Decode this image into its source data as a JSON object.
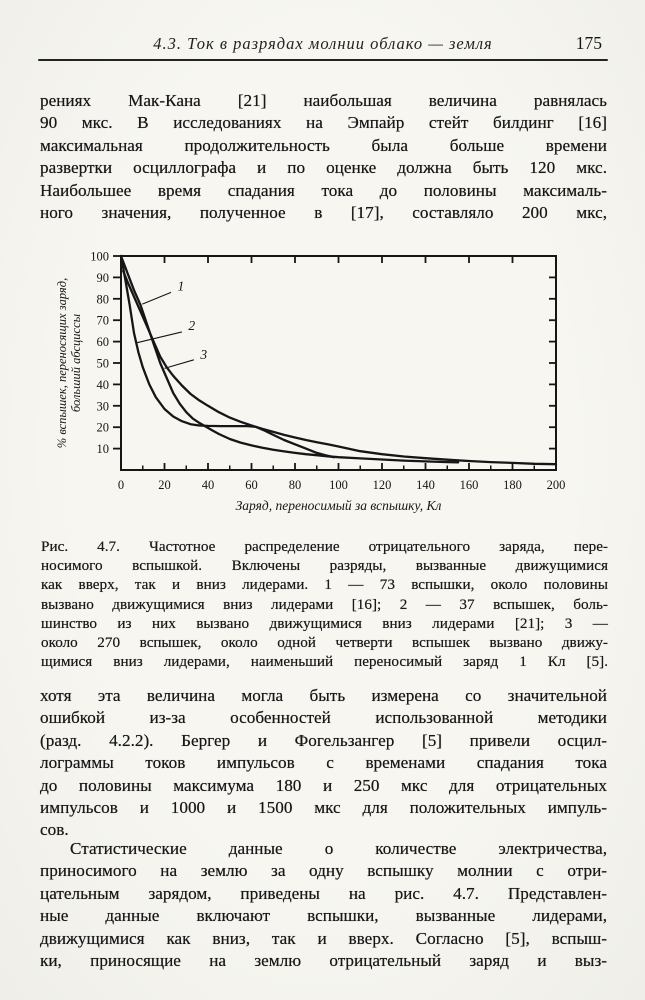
{
  "header": {
    "section": "4.3. Ток в разрядах молнии облако — земля",
    "page_number": "175"
  },
  "paragraph1": {
    "lines": [
      "рениях Мак-Кана [21] наибольшая величина равнялась",
      "90 мкс. В исследованиях на Эмпайр стейт билдинг [16]",
      "максимальная продолжительность была больше времени",
      "развертки осциллографа и по оценке должна быть 120 мкс.",
      "Наибольшее время спадания тока до половины максималь-",
      "ного значения, полученное в [17], составляло 200 мкс,"
    ]
  },
  "figure": {
    "caption_lines": [
      "Рис. 4.7. Частотное распределение отрицательного заряда, пере-",
      "носимого вспышкой. Включены разряды, вызванные движущимися",
      "как вверх, так и вниз лидерами. 1 — 73 вспышки, около половины",
      "вызвано движущимися вниз лидерами [16]; 2 — 37 вспышек, боль-",
      "шинство из них вызвано движущимися вниз лидерами [21]; 3 —",
      "около 270 вспышек, около одной четверти вспышек вызвано движу-",
      "щимися вниз лидерами, наименьший переносимый заряд 1 Кл [5]."
    ]
  },
  "paragraph2": {
    "lines": [
      "хотя эта величина могла быть измерена со значительной",
      "ошибкой из-за особенностей использованной методики",
      "(разд. 4.2.2). Бергер и Фогельзангер [5] привели осцил-",
      "лограммы токов импульсов с временами спадания тока",
      "до половины максимума 180 и 250 мкс для отрицательных",
      "импульсов и 1000 и 1500 мкс для положительных импуль-",
      "сов."
    ]
  },
  "paragraph3": {
    "lines": [
      "Статистические данные о количестве электричества,",
      "приносимого на землю за одну вспышку молнии с отри-",
      "цательным зарядом, приведены на рис. 4.7. Представлен-",
      "ные данные включают вспышки, вызванные лидерами,",
      "движущимися как вниз, так и вверх. Согласно [5], вспыш-",
      "ки, приносящие на землю отрицательный заряд и выз-"
    ]
  },
  "chart_data": {
    "type": "line",
    "title": "",
    "xlabel": "Заряд, переносимый за вспышку, Кл",
    "ylabel": "% вспышек, переносящих заряд, больший абсциссы",
    "ylabel_lines": [
      "% вспышек, переносящих заряд,",
      "больший абсциссы"
    ],
    "xlim": [
      0,
      200
    ],
    "ylim": [
      0,
      100
    ],
    "x_ticks": [
      0,
      20,
      40,
      60,
      80,
      100,
      120,
      140,
      160,
      180,
      200
    ],
    "x_minor_ticks": [
      10,
      30,
      50,
      70,
      90,
      110,
      130,
      150,
      170,
      190
    ],
    "y_ticks": [
      10,
      20,
      30,
      40,
      50,
      60,
      70,
      80,
      90,
      100
    ],
    "grid": false,
    "frame": true,
    "ink": "#161616",
    "series": [
      {
        "name": "1",
        "points": [
          [
            0,
            100
          ],
          [
            3,
            92
          ],
          [
            6,
            84
          ],
          [
            9,
            77
          ],
          [
            12,
            68
          ],
          [
            15,
            59
          ],
          [
            18,
            50
          ],
          [
            21,
            43
          ],
          [
            24,
            36
          ],
          [
            27,
            31
          ],
          [
            30,
            27
          ],
          [
            33,
            24
          ],
          [
            36,
            22
          ],
          [
            39,
            20.3
          ],
          [
            42,
            18.5
          ],
          [
            45,
            16.8
          ],
          [
            50,
            14.5
          ],
          [
            55,
            12.8
          ],
          [
            60,
            11.5
          ],
          [
            65,
            10.4
          ],
          [
            70,
            9.5
          ],
          [
            75,
            8.7
          ],
          [
            80,
            8
          ],
          [
            85,
            7.4
          ],
          [
            90,
            6.9
          ],
          [
            95,
            6.4
          ],
          [
            100,
            6
          ],
          [
            110,
            5.4
          ],
          [
            120,
            4.9
          ],
          [
            130,
            4.4
          ],
          [
            140,
            4
          ],
          [
            150,
            3.7
          ],
          [
            155,
            3.6
          ]
        ]
      },
      {
        "name": "2",
        "points": [
          [
            0,
            100
          ],
          [
            2,
            89
          ],
          [
            4,
            77
          ],
          [
            6,
            64
          ],
          [
            8,
            55
          ],
          [
            10,
            48
          ],
          [
            13,
            40
          ],
          [
            16,
            34
          ],
          [
            20,
            28.5
          ],
          [
            24,
            25
          ],
          [
            28,
            22.8
          ],
          [
            32,
            21.4
          ],
          [
            36,
            20.8
          ],
          [
            40,
            20.6
          ],
          [
            46,
            20.5
          ],
          [
            52,
            20.5
          ],
          [
            58,
            20.5
          ],
          [
            62,
            20.2
          ],
          [
            66,
            18.4
          ],
          [
            70,
            16.4
          ],
          [
            75,
            14
          ],
          [
            80,
            12
          ],
          [
            85,
            10
          ],
          [
            90,
            8
          ],
          [
            94,
            6.9
          ],
          [
            98,
            6
          ]
        ]
      },
      {
        "name": "3",
        "points": [
          [
            1,
            93
          ],
          [
            3,
            88
          ],
          [
            6,
            81
          ],
          [
            9,
            74
          ],
          [
            12,
            67
          ],
          [
            15,
            60
          ],
          [
            18,
            53
          ],
          [
            21,
            48
          ],
          [
            24,
            44
          ],
          [
            28,
            39.5
          ],
          [
            32,
            35.5
          ],
          [
            36,
            32.5
          ],
          [
            40,
            30
          ],
          [
            45,
            27
          ],
          [
            50,
            24.5
          ],
          [
            55,
            22.5
          ],
          [
            60,
            20.8
          ],
          [
            65,
            19.2
          ],
          [
            70,
            17.8
          ],
          [
            75,
            16.4
          ],
          [
            80,
            15.2
          ],
          [
            85,
            14
          ],
          [
            90,
            13
          ],
          [
            95,
            12
          ],
          [
            100,
            11
          ],
          [
            110,
            8.8
          ],
          [
            120,
            7.4
          ],
          [
            130,
            6.3
          ],
          [
            140,
            5.5
          ],
          [
            150,
            4.8
          ],
          [
            160,
            4.2
          ],
          [
            170,
            3.7
          ],
          [
            180,
            3.3
          ],
          [
            190,
            2.9
          ],
          [
            200,
            2.7
          ]
        ]
      }
    ],
    "curve_labels": [
      {
        "text": "1",
        "tx": 26,
        "ty": 86,
        "leader": [
          [
            23,
            83
          ],
          [
            9.8,
            77.5
          ]
        ]
      },
      {
        "text": "2",
        "tx": 31,
        "ty": 67.5,
        "leader": [
          [
            28,
            64.5
          ],
          [
            7.4,
            59.5
          ]
        ]
      },
      {
        "text": "3",
        "tx": 36.5,
        "ty": 54,
        "leader": [
          [
            33.5,
            51.5
          ],
          [
            20,
            47.5
          ]
        ]
      }
    ]
  }
}
